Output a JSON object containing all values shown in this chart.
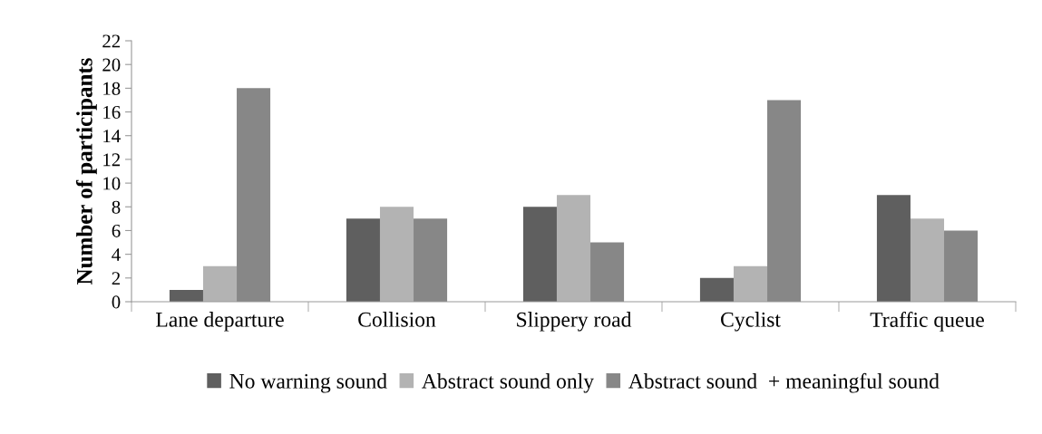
{
  "chart_data": {
    "type": "bar",
    "ylabel": "Number of participants",
    "categories": [
      "Lane departure",
      "Collision",
      "Slippery road",
      "Cyclist",
      "Traffic queue"
    ],
    "series": [
      {
        "name": "No warning sound",
        "color": "#5f5f5f",
        "values": [
          1,
          7,
          8,
          2,
          9
        ]
      },
      {
        "name": "Abstract sound only",
        "color": "#b3b3b3",
        "values": [
          3,
          8,
          9,
          3,
          7
        ]
      },
      {
        "name": "Abstract sound  + meaningful sound",
        "color": "#878787",
        "values": [
          18,
          7,
          5,
          17,
          6
        ]
      }
    ],
    "ylim": [
      0,
      22
    ],
    "yticks": [
      0,
      2,
      4,
      6,
      8,
      10,
      12,
      14,
      16,
      18,
      20,
      22
    ],
    "grid": false,
    "legend": "bottom"
  }
}
